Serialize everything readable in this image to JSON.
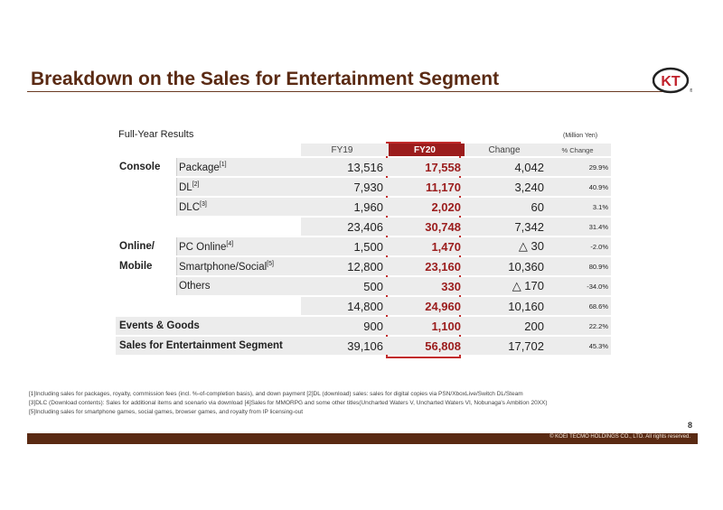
{
  "title": "Breakdown on the Sales for Entertainment Segment",
  "logo_text": "KT",
  "section_label": "Full-Year Results",
  "unit": "(Million Yen)",
  "columns": {
    "fy19": "FY19",
    "fy20": "FY20",
    "change": "Change",
    "pct": "% Change"
  },
  "rows": [
    {
      "cat": "Console",
      "item": "Package",
      "note": "[1]",
      "fy19": "13,516",
      "fy20": "17,558",
      "change": "4,042",
      "pct": "29.9%"
    },
    {
      "cat": "",
      "item": "DL",
      "note": "[2]",
      "fy19": "7,930",
      "fy20": "11,170",
      "change": "3,240",
      "pct": "40.9%"
    },
    {
      "cat": "",
      "item": "DLC",
      "note": "[3]",
      "fy19": "1,960",
      "fy20": "2,020",
      "change": "60",
      "pct": "3.1%"
    },
    {
      "cat": "",
      "item": "",
      "note": "",
      "fy19": "23,406",
      "fy20": "30,748",
      "change": "7,342",
      "pct": "31.4%"
    },
    {
      "cat": "Online/",
      "item": "PC Online",
      "note": "[4]",
      "fy19": "1,500",
      "fy20": "1,470",
      "change": "△ 30",
      "pct": "-2.0%"
    },
    {
      "cat": "Mobile",
      "item": "Smartphone/Social",
      "note": "[5]",
      "fy19": "12,800",
      "fy20": "23,160",
      "change": "10,360",
      "pct": "80.9%"
    },
    {
      "cat": "",
      "item": "Others",
      "note": "",
      "fy19": "500",
      "fy20": "330",
      "change": "△ 170",
      "pct": "-34.0%"
    },
    {
      "cat": "",
      "item": "",
      "note": "",
      "fy19": "14,800",
      "fy20": "24,960",
      "change": "10,160",
      "pct": "68.6%"
    },
    {
      "cat": "Events & Goods",
      "item": "",
      "note": "",
      "fy19": "900",
      "fy20": "1,100",
      "change": "200",
      "pct": "22.2%"
    },
    {
      "cat": "Sales for Entertainment Segment",
      "item": "",
      "note": "",
      "fy19": "39,106",
      "fy20": "56,808",
      "change": "17,702",
      "pct": "45.3%"
    }
  ],
  "footnotes": [
    "[1]Including sales for packages, royalty, commission fees (incl. %-of-completion basis), and down payment [2]DL (download) sales: sales for digital copies via PSN/XboxLive/Switch DL/Steam",
    "[3]DLC (Download contents): Sales for additional items and scenario via download [4]Sales for MMORPG and some other titles(Uncharted Waters V, Uncharted Waters VI, Nobunaga's Ambition 20XX)",
    "[5]Including sales for smartphone games, social games, browser games, and royalty from IP licensing-out"
  ],
  "page_number": "8",
  "copyright": "© KOEI TECMO HOLDINGS CO., LTD. All rights reserved."
}
